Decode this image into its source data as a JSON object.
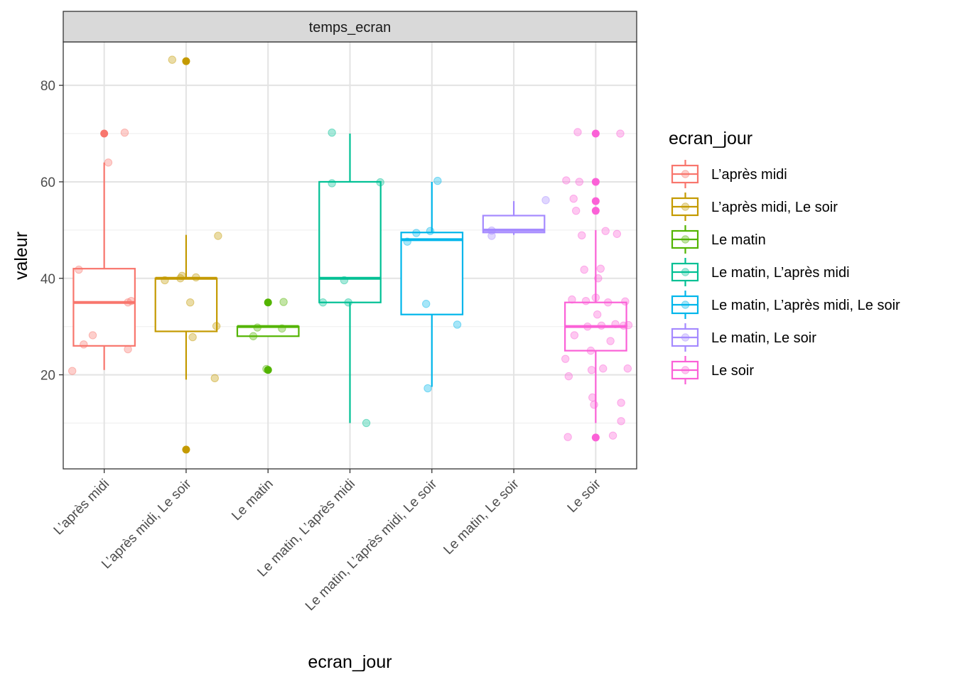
{
  "chart_data": {
    "type": "boxplot",
    "facet": "temps_ecran",
    "xlabel": "ecran_jour",
    "ylabel": "valeur",
    "ylim": [
      0.5,
      89
    ],
    "y_ticks": [
      20,
      40,
      60,
      80
    ],
    "legend_title": "ecran_jour",
    "legend_position": "right",
    "grid": true,
    "categories": [
      "L’après midi",
      "L’après midi, Le soir",
      "Le matin",
      "Le matin, L’après midi",
      "Le matin, L’après midi, Le soir",
      "Le matin, Le soir",
      "Le soir"
    ],
    "colors": [
      "#F8766D",
      "#C49A00",
      "#53B400",
      "#00C094",
      "#00B6EB",
      "#A58AFF",
      "#FB61D7"
    ],
    "boxes": [
      {
        "q1": 26,
        "median": 35,
        "q3": 42,
        "whisker_low": 21,
        "whisker_high": 64,
        "outliers": [
          70
        ]
      },
      {
        "q1": 29,
        "median": 40,
        "q3": 40,
        "whisker_low": 19,
        "whisker_high": 49,
        "outliers": [
          85,
          4.5
        ]
      },
      {
        "q1": 28,
        "median": 30,
        "q3": 30,
        "whisker_low": 28,
        "whisker_high": 30,
        "outliers": [
          35,
          21
        ]
      },
      {
        "q1": 35,
        "median": 40,
        "q3": 60,
        "whisker_low": 10,
        "whisker_high": 70,
        "outliers": []
      },
      {
        "q1": 32.5,
        "median": 48,
        "q3": 49.5,
        "whisker_low": 17.5,
        "whisker_high": 60,
        "outliers": []
      },
      {
        "q1": 49.5,
        "median": 50,
        "q3": 53,
        "whisker_low": 49,
        "whisker_high": 56,
        "outliers": []
      },
      {
        "q1": 25,
        "median": 30,
        "q3": 35,
        "whisker_low": 10,
        "whisker_high": 50,
        "outliers": [
          70,
          60,
          56,
          54,
          7
        ]
      }
    ],
    "jitter": [
      [
        [
          -0.39,
          20.8
        ],
        [
          -0.31,
          41.8
        ],
        [
          -0.25,
          26.3
        ],
        [
          -0.14,
          28.2
        ],
        [
          0.05,
          64
        ],
        [
          0.25,
          70.2
        ],
        [
          0.29,
          25.3
        ],
        [
          0.29,
          35
        ],
        [
          0.33,
          35.3
        ]
      ],
      [
        [
          -0.26,
          39.6
        ],
        [
          -0.17,
          85.3
        ],
        [
          -0.07,
          40
        ],
        [
          -0.05,
          40.5
        ],
        [
          0.05,
          35
        ],
        [
          0.08,
          27.8
        ],
        [
          0.12,
          40.2
        ],
        [
          0.35,
          19.3
        ],
        [
          0.37,
          30.1
        ],
        [
          0.39,
          48.8
        ]
      ],
      [
        [
          -0.18,
          28
        ],
        [
          -0.13,
          29.8
        ],
        [
          -0.02,
          21.2
        ],
        [
          0.17,
          29.6
        ],
        [
          0.19,
          35.1
        ]
      ],
      [
        [
          -0.33,
          35
        ],
        [
          -0.22,
          70.2
        ],
        [
          -0.22,
          59.7
        ],
        [
          -0.07,
          39.6
        ],
        [
          -0.02,
          35
        ],
        [
          0.2,
          10
        ],
        [
          0.37,
          59.9
        ]
      ],
      [
        [
          -0.3,
          47.6
        ],
        [
          -0.19,
          49.4
        ],
        [
          -0.07,
          34.7
        ],
        [
          -0.05,
          17.2
        ],
        [
          -0.02,
          49.8
        ],
        [
          0.07,
          60.2
        ],
        [
          0.31,
          30.4
        ]
      ],
      [
        [
          -0.27,
          48.8
        ],
        [
          -0.27,
          49.9
        ],
        [
          0.39,
          56.2
        ]
      ],
      [
        [
          -0.37,
          23.3
        ],
        [
          -0.36,
          60.3
        ],
        [
          -0.34,
          7.1
        ],
        [
          -0.33,
          19.7
        ],
        [
          -0.29,
          35.6
        ],
        [
          -0.27,
          56.5
        ],
        [
          -0.26,
          28.2
        ],
        [
          -0.24,
          54
        ],
        [
          -0.22,
          70.3
        ],
        [
          -0.2,
          60
        ],
        [
          -0.17,
          48.9
        ],
        [
          -0.14,
          41.8
        ],
        [
          -0.12,
          35.3
        ],
        [
          -0.1,
          30
        ],
        [
          -0.06,
          25
        ],
        [
          -0.05,
          21
        ],
        [
          -0.04,
          15.3
        ],
        [
          -0.02,
          13.8
        ],
        [
          0.0,
          36
        ],
        [
          0.02,
          32.5
        ],
        [
          0.03,
          40
        ],
        [
          0.06,
          42
        ],
        [
          0.07,
          30.2
        ],
        [
          0.09,
          21.3
        ],
        [
          0.12,
          49.8
        ],
        [
          0.15,
          35
        ],
        [
          0.18,
          27
        ],
        [
          0.21,
          7.4
        ],
        [
          0.24,
          30.5
        ],
        [
          0.26,
          49.2
        ],
        [
          0.3,
          70
        ],
        [
          0.31,
          14.2
        ],
        [
          0.31,
          10.4
        ],
        [
          0.34,
          30.2
        ],
        [
          0.36,
          35.2
        ],
        [
          0.39,
          21.3
        ],
        [
          0.4,
          30.3
        ]
      ]
    ]
  }
}
